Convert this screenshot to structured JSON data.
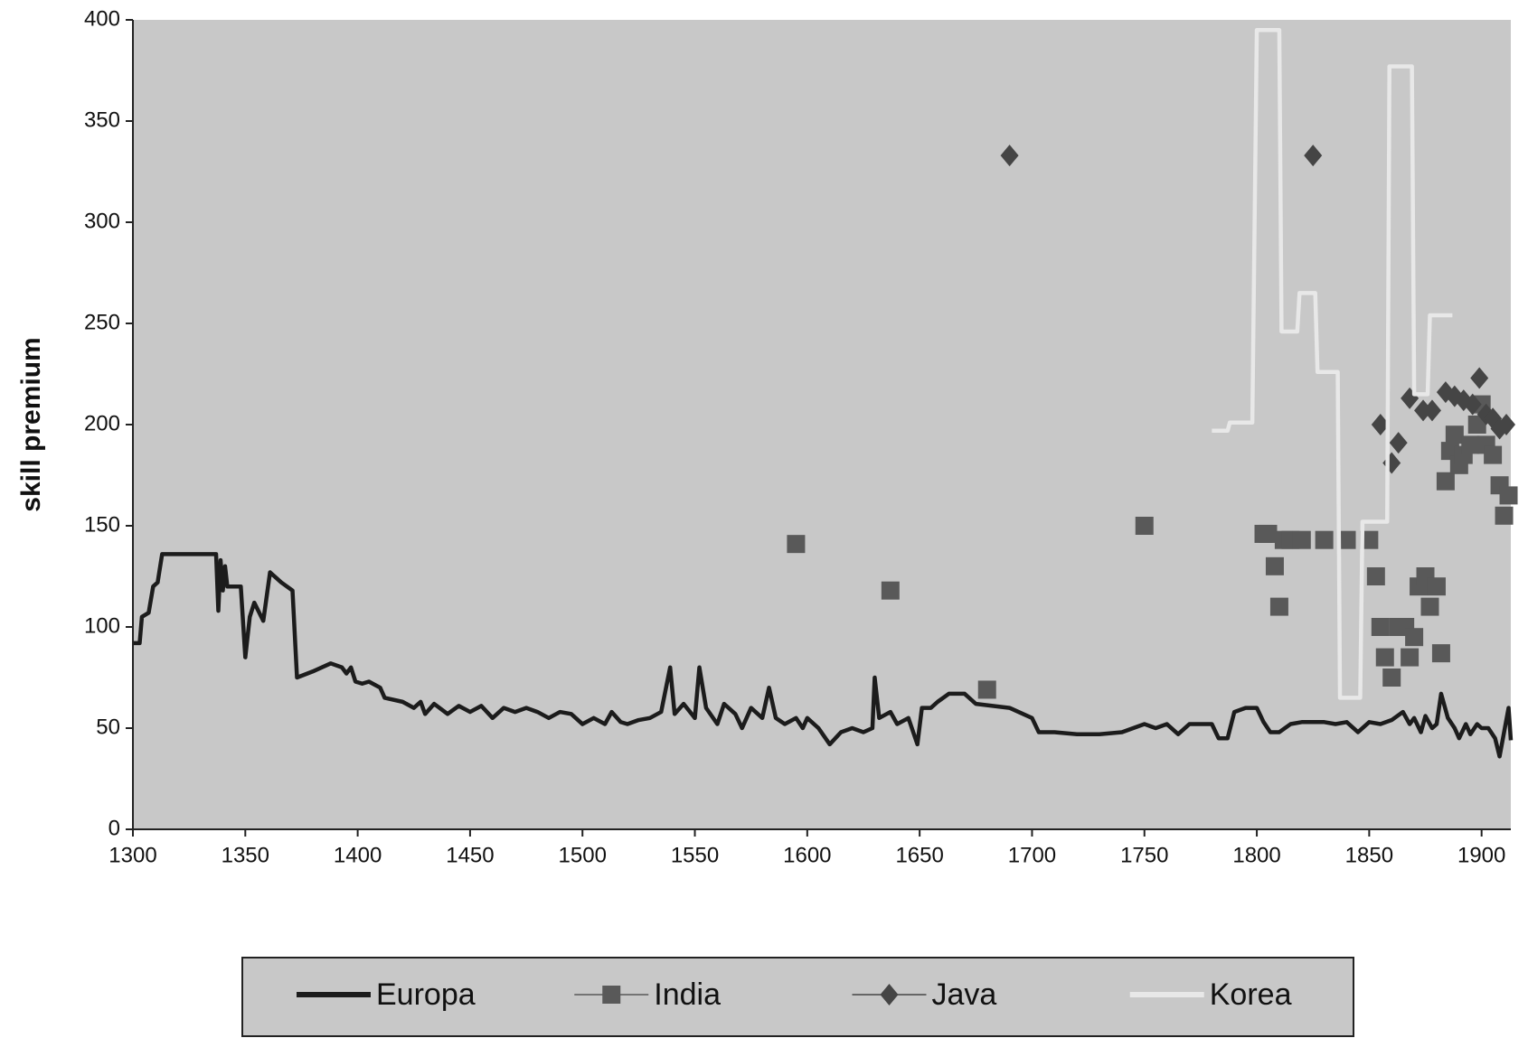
{
  "chart_data": {
    "type": "line",
    "y_label": "skill premium",
    "xlim": [
      1300,
      1913
    ],
    "ylim": [
      0,
      400
    ],
    "xticks": [
      1300,
      1350,
      1400,
      1450,
      1500,
      1550,
      1600,
      1650,
      1700,
      1750,
      1800,
      1850,
      1900
    ],
    "yticks": [
      0,
      50,
      100,
      150,
      200,
      250,
      300,
      350,
      400
    ],
    "background": "#c8c8c8",
    "legend": "bottom",
    "series": [
      {
        "name": "Europa",
        "color": "#1c1c1c",
        "line": true,
        "marker": "none",
        "x": [
          1300,
          1303,
          1304,
          1307,
          1309,
          1311,
          1313,
          1337,
          1338,
          1339,
          1340,
          1341,
          1342,
          1348,
          1350,
          1352,
          1354,
          1358,
          1361,
          1366,
          1371,
          1373,
          1380,
          1388,
          1393,
          1395,
          1397,
          1399,
          1402,
          1405,
          1410,
          1412,
          1420,
          1425,
          1428,
          1430,
          1434,
          1440,
          1445,
          1450,
          1455,
          1460,
          1465,
          1470,
          1475,
          1480,
          1485,
          1490,
          1495,
          1500,
          1505,
          1510,
          1513,
          1517,
          1520,
          1525,
          1530,
          1535,
          1539,
          1541,
          1545,
          1550,
          1552,
          1555,
          1560,
          1563,
          1568,
          1571,
          1575,
          1580,
          1583,
          1586,
          1590,
          1595,
          1598,
          1600,
          1605,
          1610,
          1615,
          1620,
          1625,
          1629,
          1630,
          1632,
          1637,
          1640,
          1645,
          1649,
          1651,
          1655,
          1658,
          1663,
          1670,
          1675,
          1690,
          1700,
          1703,
          1710,
          1720,
          1730,
          1740,
          1745,
          1750,
          1755,
          1760,
          1765,
          1770,
          1775,
          1780,
          1783,
          1787,
          1790,
          1795,
          1800,
          1803,
          1806,
          1810,
          1815,
          1820,
          1825,
          1830,
          1835,
          1840,
          1845,
          1850,
          1855,
          1860,
          1865,
          1868,
          1870,
          1873,
          1875,
          1878,
          1880,
          1882,
          1885,
          1888,
          1890,
          1893,
          1895,
          1898,
          1900,
          1903,
          1906,
          1908,
          1910,
          1912,
          1913
        ],
        "values": [
          92,
          92,
          105,
          107,
          120,
          122,
          136,
          136,
          108,
          133,
          118,
          130,
          120,
          120,
          85,
          105,
          112,
          103,
          127,
          122,
          118,
          75,
          78,
          82,
          80,
          77,
          80,
          73,
          72,
          73,
          70,
          65,
          63,
          60,
          63,
          57,
          62,
          57,
          61,
          58,
          61,
          55,
          60,
          58,
          60,
          58,
          55,
          58,
          57,
          52,
          55,
          52,
          58,
          53,
          52,
          54,
          55,
          58,
          80,
          57,
          62,
          55,
          80,
          60,
          52,
          62,
          57,
          50,
          60,
          55,
          70,
          55,
          52,
          55,
          50,
          55,
          50,
          42,
          48,
          50,
          48,
          50,
          75,
          55,
          58,
          52,
          55,
          42,
          60,
          60,
          63,
          67,
          67,
          62,
          60,
          55,
          48,
          48,
          47,
          47,
          48,
          50,
          52,
          50,
          52,
          47,
          52,
          52,
          52,
          45,
          45,
          58,
          60,
          60,
          53,
          48,
          48,
          52,
          53,
          53,
          53,
          52,
          53,
          48,
          53,
          52,
          54,
          58,
          52,
          55,
          48,
          56,
          50,
          52,
          67,
          55,
          50,
          45,
          52,
          47,
          52,
          50,
          50,
          45,
          36,
          48,
          60,
          44
        ]
      },
      {
        "name": "India",
        "color": "#595959",
        "line": false,
        "marker": "square",
        "x": [
          1595,
          1637,
          1680,
          1750,
          1803,
          1805,
          1808,
          1810,
          1812,
          1815,
          1820,
          1830,
          1840,
          1850,
          1853,
          1855,
          1857,
          1860,
          1863,
          1866,
          1868,
          1870,
          1872,
          1875,
          1877,
          1880,
          1882,
          1884,
          1886,
          1888,
          1890,
          1892,
          1895,
          1898,
          1900,
          1902,
          1905,
          1908,
          1910,
          1912
        ],
        "values": [
          141,
          118,
          69,
          150,
          146,
          146,
          130,
          110,
          143,
          143,
          143,
          143,
          143,
          143,
          125,
          100,
          85,
          75,
          100,
          100,
          85,
          95,
          120,
          125,
          110,
          120,
          87,
          172,
          187,
          195,
          180,
          185,
          190,
          200,
          210,
          190,
          185,
          170,
          155,
          165
        ]
      },
      {
        "name": "Java",
        "color": "#454545",
        "line": false,
        "marker": "diamond",
        "x": [
          1690,
          1825,
          1855,
          1860,
          1863,
          1868,
          1874,
          1878,
          1884,
          1888,
          1892,
          1896,
          1899,
          1902,
          1905,
          1908,
          1911
        ],
        "values": [
          333,
          333,
          200,
          181,
          191,
          213,
          207,
          207,
          216,
          214,
          212,
          210,
          223,
          205,
          203,
          198,
          200
        ]
      },
      {
        "name": "Korea",
        "color": "#e8e8e8",
        "line": true,
        "marker": "none",
        "x": [
          1780,
          1787,
          1788,
          1798,
          1800,
          1810,
          1811,
          1818,
          1819,
          1826,
          1827,
          1836,
          1837,
          1846,
          1847,
          1858,
          1859,
          1869,
          1870,
          1876,
          1877,
          1887
        ],
        "values": [
          197,
          197,
          201,
          201,
          395,
          395,
          246,
          246,
          265,
          265,
          226,
          226,
          65,
          65,
          152,
          152,
          377,
          377,
          215,
          215,
          254,
          254
        ]
      }
    ]
  }
}
